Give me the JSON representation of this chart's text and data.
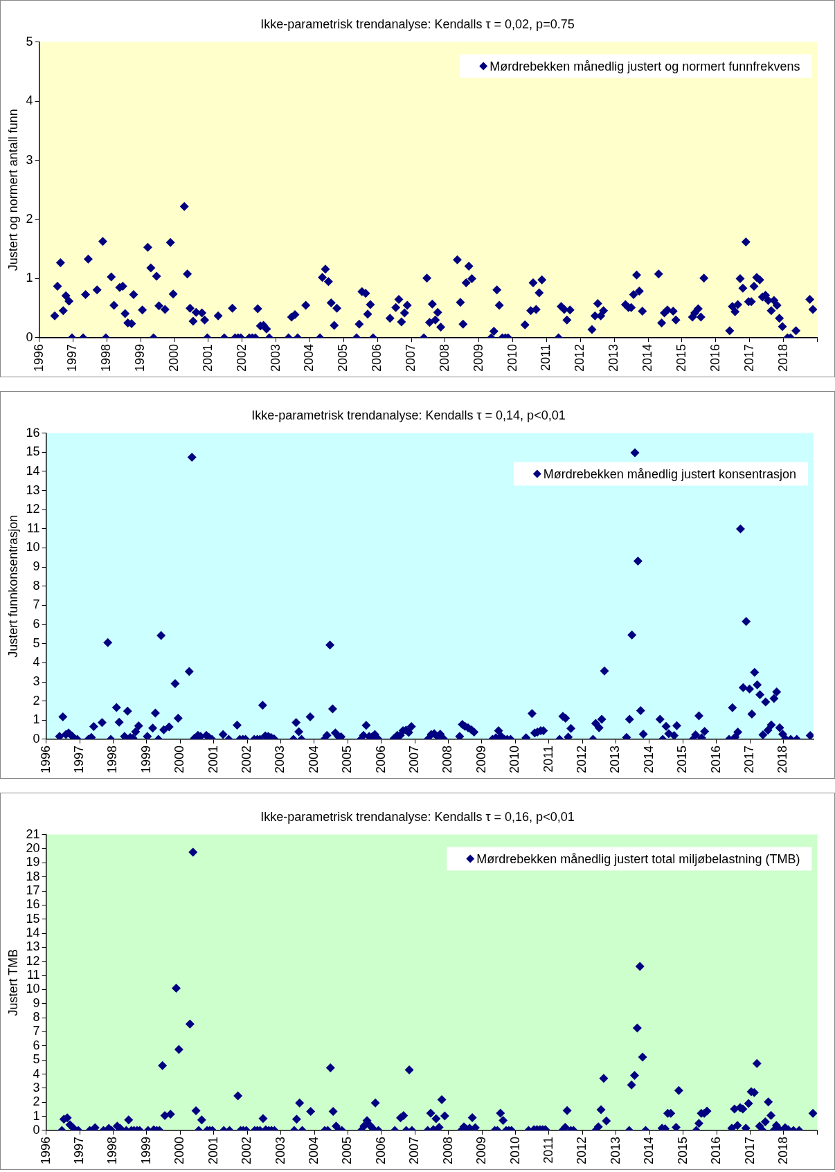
{
  "chart_data": [
    {
      "type": "scatter",
      "title": "Ikke-parametrisk trendanalyse: Kendalls τ = 0,02, p=0.75",
      "ylabel": "Justert og normert antall funn",
      "marker": "diamond",
      "legend": "top right",
      "xlim": [
        1996,
        2019
      ],
      "xticks": [
        1996,
        1997,
        1998,
        1999,
        2000,
        2001,
        2002,
        2003,
        2004,
        2005,
        2006,
        2007,
        2008,
        2009,
        2010,
        2011,
        2012,
        2013,
        2014,
        2015,
        2016,
        2017,
        2018,
        {
          "value": 2019,
          "label": null
        }
      ],
      "ylim": [
        0,
        5
      ],
      "yticks": [
        0,
        1,
        2,
        3,
        4,
        5
      ],
      "series": [
        {
          "name": "Mørdrebekken månedlig justert og normert funnfrekvens",
          "color": "#000080",
          "x": [
            1996.46,
            1996.54,
            1996.63,
            1996.71,
            1996.79,
            1996.88,
            1996.97,
            1997.3,
            1997.37,
            1997.45,
            1997.71,
            1997.88,
            1997.97,
            1998.13,
            1998.21,
            1998.38,
            1998.47,
            1998.54,
            1998.62,
            1998.73,
            1998.79,
            1999.05,
            1999.21,
            1999.3,
            1999.38,
            1999.47,
            1999.54,
            1999.72,
            1999.88,
            1999.96,
            2000.29,
            2000.38,
            2000.46,
            2000.55,
            2000.64,
            2000.81,
            2000.89,
            2000.97,
            2001.29,
            2001.47,
            2001.71,
            2001.79,
            2001.88,
            2001.96,
            2002.21,
            2002.3,
            2002.39,
            2002.46,
            2002.54,
            2002.63,
            2002.72,
            2002.8,
            2003.37,
            2003.46,
            2003.56,
            2003.64,
            2003.88,
            2004.3,
            2004.37,
            2004.46,
            2004.55,
            2004.63,
            2004.72,
            2004.8,
            2005.38,
            2005.46,
            2005.54,
            2005.65,
            2005.71,
            2005.79,
            2005.87,
            2006.37,
            2006.54,
            2006.63,
            2006.71,
            2006.8,
            2006.88,
            2007.37,
            2007.46,
            2007.54,
            2007.62,
            2007.71,
            2007.78,
            2007.87,
            2008.36,
            2008.45,
            2008.53,
            2008.62,
            2008.7,
            2008.79,
            2009.36,
            2009.44,
            2009.53,
            2009.6,
            2009.69,
            2009.78,
            2009.86,
            2010.36,
            2010.53,
            2010.6,
            2010.69,
            2010.78,
            2010.86,
            2011.35,
            2011.43,
            2011.52,
            2011.6,
            2011.69,
            2012.34,
            2012.43,
            2012.51,
            2012.6,
            2012.68,
            2013.33,
            2013.42,
            2013.5,
            2013.57,
            2013.66,
            2013.74,
            2013.83,
            2014.31,
            2014.4,
            2014.48,
            2014.57,
            2014.74,
            2014.82,
            2015.31,
            2015.38,
            2015.48,
            2015.56,
            2015.65,
            2016.41,
            2016.49,
            2016.57,
            2016.65,
            2016.72,
            2016.8,
            2016.89,
            2016.97,
            2017.05,
            2017.13,
            2017.21,
            2017.3,
            2017.38,
            2017.47,
            2017.55,
            2017.64,
            2017.72,
            2017.81,
            2017.88,
            2017.97,
            2018.12,
            2018.21,
            2018.37,
            2018.78,
            2018.87
          ],
          "values": [
            0.37,
            0.87,
            1.27,
            0.46,
            0.71,
            0.62,
            0,
            0,
            0.73,
            1.33,
            0.81,
            1.63,
            0,
            1.03,
            0.55,
            0.85,
            0.87,
            0.41,
            0.25,
            0.24,
            0.73,
            0.47,
            1.53,
            1.18,
            0,
            1.04,
            0.54,
            0.48,
            1.61,
            0.74,
            2.22,
            1.08,
            0.5,
            0.28,
            0.43,
            0.42,
            0.3,
            0,
            0.37,
            0,
            0.5,
            0,
            0,
            0,
            0,
            0,
            0,
            0.49,
            0.2,
            0.21,
            0.15,
            0,
            0,
            0.35,
            0.39,
            0,
            0.55,
            0,
            1.02,
            1.16,
            0.95,
            0.59,
            0.21,
            0.5,
            0,
            0.23,
            0.78,
            0.75,
            0.4,
            0.56,
            0,
            0.33,
            0.51,
            0.65,
            0.27,
            0.42,
            0.55,
            0,
            1.01,
            0.26,
            0.57,
            0.3,
            0.43,
            0.18,
            1.32,
            0.6,
            0.23,
            0.93,
            1.21,
            1.0,
            0,
            0.11,
            0.81,
            0.55,
            0,
            0,
            0,
            0.22,
            0.46,
            0.93,
            0.48,
            0.76,
            0.98,
            0,
            0.53,
            0.48,
            0.3,
            0.47,
            0.14,
            0.37,
            0.58,
            0.37,
            0.46,
            0.56,
            0.51,
            0.51,
            0.73,
            1.06,
            0.79,
            0.45,
            1.08,
            0.25,
            0.42,
            0.47,
            0.45,
            0.3,
            0.35,
            0.42,
            0.49,
            0.35,
            1.01,
            0.12,
            0.53,
            0.44,
            0.56,
            1.0,
            0.84,
            1.62,
            0.61,
            0.61,
            0.87,
            1.02,
            0.98,
            0.69,
            0.72,
            0.63,
            0.46,
            0.63,
            0.55,
            0.33,
            0.19,
            0,
            0,
            0.12,
            0.65,
            0.48
          ]
        }
      ]
    },
    {
      "type": "scatter",
      "title": "Ikke-parametrisk trendanalyse: Kendalls τ = 0,14, p<0,01",
      "ylabel": "Justert funnkonsentrasjon",
      "marker": "diamond",
      "legend": "top right",
      "xlim": [
        1996,
        2018.9
      ],
      "xticks": [
        1996,
        1997,
        1998,
        1999,
        2000,
        2001,
        2002,
        2003,
        2004,
        2005,
        2006,
        2007,
        2008,
        2009,
        2010,
        2011,
        2012,
        2013,
        2014,
        2015,
        2016,
        2017,
        2018
      ],
      "ylim": [
        0,
        16
      ],
      "yticks": [
        0,
        1,
        2,
        3,
        4,
        5,
        6,
        7,
        8,
        9,
        10,
        11,
        12,
        13,
        14,
        15,
        16
      ],
      "series": [
        {
          "name": "Mørdrebekken månedlig justert konsentrasjon",
          "color": "#000080",
          "x": [
            1996.4,
            1996.5,
            1996.59,
            1996.67,
            1996.77,
            1996.85,
            1996.93,
            1997.26,
            1997.35,
            1997.42,
            1997.67,
            1997.84,
            1997.93,
            1998.1,
            1998.18,
            1998.34,
            1998.43,
            1998.51,
            1998.59,
            1998.67,
            1998.76,
            1999.02,
            1999.18,
            1999.26,
            1999.35,
            1999.43,
            1999.51,
            1999.67,
            1999.85,
            1999.94,
            2000.27,
            2000.35,
            2000.43,
            2000.53,
            2000.61,
            2000.78,
            2000.86,
            2000.95,
            2001.28,
            2001.45,
            2001.7,
            2001.78,
            2001.87,
            2001.95,
            2002.21,
            2002.3,
            2002.38,
            2002.46,
            2002.54,
            2002.63,
            2002.71,
            2002.8,
            2003.38,
            2003.46,
            2003.54,
            2003.62,
            2003.88,
            2004.3,
            2004.38,
            2004.47,
            2004.55,
            2004.63,
            2004.72,
            2004.8,
            2005.39,
            2005.47,
            2005.55,
            2005.64,
            2005.73,
            2005.81,
            2005.9,
            2006.39,
            2006.48,
            2006.57,
            2006.65,
            2006.74,
            2006.82,
            2006.9,
            2007.39,
            2007.49,
            2007.58,
            2007.68,
            2007.76,
            2007.86,
            2008.34,
            2008.42,
            2008.5,
            2008.59,
            2008.69,
            2008.77,
            2009.32,
            2009.42,
            2009.5,
            2009.58,
            2009.68,
            2009.76,
            2009.86,
            2010.32,
            2010.5,
            2010.58,
            2010.66,
            2010.76,
            2010.84,
            2011.32,
            2011.42,
            2011.5,
            2011.58,
            2011.66,
            2012.32,
            2012.4,
            2012.5,
            2012.58,
            2012.66,
            2013.32,
            2013.41,
            2013.48,
            2013.57,
            2013.66,
            2013.74,
            2013.82,
            2014.32,
            2014.4,
            2014.5,
            2014.58,
            2014.74,
            2014.82,
            2015.3,
            2015.38,
            2015.48,
            2015.56,
            2015.65,
            2016.38,
            2016.48,
            2016.56,
            2016.64,
            2016.72,
            2016.8,
            2016.89,
            2016.99,
            2017.06,
            2017.14,
            2017.22,
            2017.3,
            2017.39,
            2017.47,
            2017.54,
            2017.64,
            2017.72,
            2017.8,
            2017.89,
            2017.98,
            2018.06,
            2018.22,
            2018.4,
            2018.8
          ],
          "values": [
            0.15,
            1.17,
            0.25,
            0.33,
            0.18,
            0.03,
            0,
            0,
            0.1,
            0.67,
            0.88,
            5.05,
            0,
            1.66,
            0.89,
            0.15,
            1.47,
            0.1,
            0.06,
            0.4,
            0.7,
            0.15,
            0.59,
            1.37,
            0,
            5.42,
            0.5,
            0.65,
            2.91,
            1.1,
            3.54,
            14.74,
            0.06,
            0.21,
            0.15,
            0.21,
            0.1,
            0,
            0.25,
            0,
            0.74,
            0,
            0,
            0,
            0,
            0,
            0,
            1.78,
            0.18,
            0.15,
            0.1,
            0.03,
            0,
            0.88,
            0.4,
            0,
            1.17,
            0,
            0.21,
            4.93,
            1.59,
            0.33,
            0.15,
            0.13,
            0,
            0.21,
            0.73,
            0.15,
            0.13,
            0.25,
            0.03,
            0.06,
            0.21,
            0.21,
            0.45,
            0.48,
            0.36,
            0.67,
            0,
            0.25,
            0.3,
            0.15,
            0.27,
            0.03,
            0.15,
            0.78,
            0.68,
            0.6,
            0.5,
            0.38,
            0,
            0.08,
            0.45,
            0.15,
            0,
            0,
            0,
            0.08,
            1.35,
            0.33,
            0.38,
            0.45,
            0.45,
            0,
            1.2,
            1.1,
            0.12,
            0.57,
            0,
            0.83,
            0.6,
            1.05,
            3.57,
            0.1,
            1.05,
            5.45,
            14.97,
            9.31,
            1.5,
            0.27,
            1.05,
            0,
            0.68,
            0.3,
            0.2,
            0.71,
            0,
            0.23,
            1.23,
            0.08,
            0.41,
            0,
            1.65,
            0.12,
            0.38,
            10.99,
            2.7,
            6.16,
            2.63,
            1.32,
            3.5,
            2.85,
            2.33,
            0.23,
            1.95,
            0.48,
            0.75,
            2.13,
            2.48,
            0.6,
            0.27,
            0.03,
            0,
            0,
            0.2
          ]
        }
      ]
    },
    {
      "type": "scatter",
      "title": "Ikke-parametrisk trendanalyse: Kendalls τ = 0,16, p<0,01",
      "ylabel": "Justert TMB",
      "marker": "diamond",
      "legend": "top right",
      "xlim": [
        1996,
        2019
      ],
      "xticks": [
        1996,
        1997,
        1998,
        1999,
        2000,
        2001,
        2002,
        2003,
        2004,
        2005,
        2006,
        2007,
        2008,
        2009,
        2010,
        2011,
        2012,
        2013,
        2014,
        2015,
        2016,
        2017,
        2018,
        {
          "value": 2019,
          "label": null
        }
      ],
      "ylim": [
        0,
        21
      ],
      "yticks": [
        0,
        1,
        2,
        3,
        4,
        5,
        6,
        7,
        8,
        9,
        10,
        11,
        12,
        13,
        14,
        15,
        16,
        17,
        18,
        19,
        20,
        21
      ],
      "series": [
        {
          "name": "Mørdrebekken månedlig justert total miljøbelastning (TMB)",
          "color": "#000080",
          "x": [
            1996.47,
            1996.53,
            1996.63,
            1996.71,
            1996.8,
            1996.96,
            1997.3,
            1997.46,
            1997.71,
            1997.87,
            1997.95,
            1998.12,
            1998.21,
            1998.39,
            1998.46,
            1998.54,
            1998.62,
            1998.71,
            1998.79,
            1999.04,
            1999.21,
            1999.3,
            1999.38,
            1999.47,
            1999.54,
            1999.71,
            1999.88,
            1999.96,
            2000.29,
            2000.38,
            2000.47,
            2000.55,
            2000.64,
            2000.8,
            2000.88,
            2000.96,
            2001.3,
            2001.47,
            2001.72,
            2001.8,
            2001.88,
            2001.97,
            2002.22,
            2002.3,
            2002.38,
            2002.47,
            2002.55,
            2002.64,
            2002.72,
            2002.81,
            2003.4,
            2003.47,
            2003.56,
            2003.64,
            2003.89,
            2004.31,
            2004.4,
            2004.48,
            2004.56,
            2004.65,
            2004.73,
            2004.82,
            2005.4,
            2005.48,
            2005.57,
            2005.66,
            2005.74,
            2005.82,
            2005.91,
            2006.4,
            2006.57,
            2006.66,
            2006.74,
            2006.83,
            2006.91,
            2007.38,
            2007.47,
            2007.55,
            2007.63,
            2007.72,
            2007.8,
            2007.89,
            2008.38,
            2008.46,
            2008.54,
            2008.63,
            2008.71,
            2008.8,
            2009.38,
            2009.46,
            2009.55,
            2009.63,
            2009.72,
            2009.8,
            2009.88,
            2010.39,
            2010.55,
            2010.64,
            2010.73,
            2010.81,
            2010.89,
            2011.4,
            2011.48,
            2011.54,
            2011.65,
            2011.73,
            2012.39,
            2012.47,
            2012.55,
            2012.63,
            2012.71,
            2013.39,
            2013.46,
            2013.55,
            2013.63,
            2013.71,
            2013.79,
            2013.88,
            2014.37,
            2014.46,
            2014.54,
            2014.63,
            2014.79,
            2014.87,
            2015.39,
            2015.47,
            2015.54,
            2015.63,
            2015.71,
            2016.45,
            2016.53,
            2016.62,
            2016.7,
            2016.78,
            2016.87,
            2016.95,
            2017.03,
            2017.12,
            2017.2,
            2017.28,
            2017.37,
            2017.45,
            2017.54,
            2017.62,
            2017.7,
            2017.78,
            2017.87,
            2018.04,
            2018.13,
            2018.29,
            2018.46,
            2018.87
          ],
          "values": [
            0,
            0.8,
            0.9,
            0.4,
            0.2,
            0,
            0,
            0.2,
            0,
            0.15,
            0,
            0.3,
            0.15,
            0,
            0.75,
            0,
            0,
            0,
            0,
            0,
            0.05,
            0,
            0,
            4.6,
            1.05,
            1.15,
            10.1,
            5.75,
            7.55,
            19.75,
            1.4,
            0,
            0.75,
            0,
            0,
            0,
            0,
            0,
            2.45,
            0,
            0,
            0,
            0,
            0,
            0,
            0.85,
            0.05,
            0,
            0,
            0,
            0,
            0.8,
            1.95,
            0,
            1.35,
            0,
            0,
            4.45,
            1.35,
            0.3,
            0,
            0,
            0,
            0.3,
            0.7,
            0.35,
            0.15,
            1.95,
            0,
            0,
            0.9,
            1.05,
            0,
            4.3,
            0,
            0,
            1.23,
            0.06,
            0.83,
            0.22,
            2.18,
            1.03,
            0,
            0.26,
            0.1,
            0.16,
            0.91,
            0.2,
            0,
            0,
            1.23,
            0.71,
            0,
            0,
            0,
            0,
            0.06,
            0.06,
            0.06,
            0.06,
            0.06,
            0,
            0.22,
            1.41,
            0,
            0,
            0,
            0.26,
            1.47,
            3.7,
            0.67,
            0,
            3.23,
            3.9,
            7.27,
            11.64,
            5.21,
            0,
            0.16,
            0.12,
            1.21,
            1.21,
            0.22,
            2.83,
            0,
            0.5,
            1.21,
            1.21,
            1.37,
            0.16,
            1.52,
            0.36,
            1.62,
            1.52,
            0.16,
            1.92,
            2.75,
            2.69,
            4.75,
            0.3,
            0,
            0.61,
            2.02,
            1.07,
            0,
            0.36,
            0.06,
            0.2,
            0.06,
            0,
            0,
            1.21
          ]
        }
      ]
    }
  ]
}
